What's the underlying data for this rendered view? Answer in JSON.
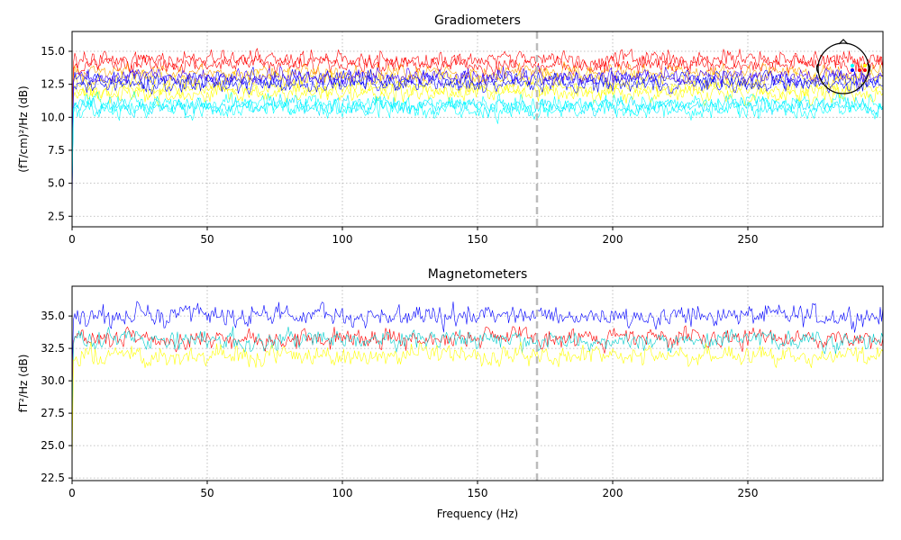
{
  "chart_data": [
    {
      "type": "line",
      "title": "Gradiometers",
      "xlabel": "",
      "ylabel": "(fT/cm)²/Hz (dB)",
      "xlim": [
        0,
        300
      ],
      "ylim": [
        1.7,
        16.5
      ],
      "xticks": [
        0,
        50,
        100,
        150,
        200,
        250
      ],
      "yticks": [
        2.5,
        5.0,
        7.5,
        10.0,
        12.5,
        15.0
      ],
      "grid": true,
      "vline_x": 172,
      "series": [
        {
          "color": "#ff0000",
          "mean": 14.4,
          "spread": 0.45,
          "start": 8.5,
          "seed": 11
        },
        {
          "color": "#ff0000",
          "mean": 14.0,
          "spread": 0.4,
          "start": 8.0,
          "seed": 12
        },
        {
          "color": "#ffa500",
          "mean": 13.4,
          "spread": 0.4,
          "start": 7.5,
          "seed": 13
        },
        {
          "color": "#ffd700",
          "mean": 12.9,
          "spread": 0.45,
          "start": 7.0,
          "seed": 14
        },
        {
          "color": "#ffff00",
          "mean": 11.8,
          "spread": 0.45,
          "start": 6.0,
          "seed": 15
        },
        {
          "color": "#ffff00",
          "mean": 12.2,
          "spread": 0.4,
          "start": 6.5,
          "seed": 16
        },
        {
          "color": "#0000ff",
          "mean": 12.9,
          "spread": 0.45,
          "start": 3.0,
          "seed": 17
        },
        {
          "color": "#0000ff",
          "mean": 12.5,
          "spread": 0.4,
          "start": 4.0,
          "seed": 18
        },
        {
          "color": "#4000ff",
          "mean": 13.1,
          "spread": 0.4,
          "start": 5.0,
          "seed": 19
        },
        {
          "color": "#00ffff",
          "mean": 11.0,
          "spread": 0.45,
          "start": 5.0,
          "seed": 20
        },
        {
          "color": "#00ffff",
          "mean": 10.6,
          "spread": 0.45,
          "start": 4.5,
          "seed": 21
        },
        {
          "color": "#00e5ff",
          "mean": 10.9,
          "spread": 0.4,
          "start": 5.0,
          "seed": 22
        }
      ],
      "sensor_inset": {
        "location": "top-right",
        "dots": [
          "#00ffff",
          "#0000ff",
          "#ff0000",
          "#ffff00",
          "#ff0000"
        ]
      }
    },
    {
      "type": "line",
      "title": "Magnetometers",
      "xlabel": "Frequency (Hz)",
      "ylabel": "fT²/Hz (dB)",
      "xlim": [
        0,
        300
      ],
      "ylim": [
        22.3,
        37.3
      ],
      "xticks": [
        0,
        50,
        100,
        150,
        200,
        250
      ],
      "yticks": [
        22.5,
        25.0,
        27.5,
        30.0,
        32.5,
        35.0
      ],
      "grid": true,
      "vline_x": 172,
      "series": [
        {
          "color": "#0000ff",
          "mean": 35.0,
          "spread": 0.55,
          "start": 30.0,
          "seed": 31
        },
        {
          "color": "#ff0000",
          "mean": 33.3,
          "spread": 0.5,
          "start": 28.0,
          "seed": 32
        },
        {
          "color": "#00cccc",
          "mean": 33.1,
          "spread": 0.5,
          "start": 25.0,
          "seed": 33
        },
        {
          "color": "#ffff00",
          "mean": 31.9,
          "spread": 0.5,
          "start": 23.0,
          "seed": 34
        }
      ]
    }
  ]
}
